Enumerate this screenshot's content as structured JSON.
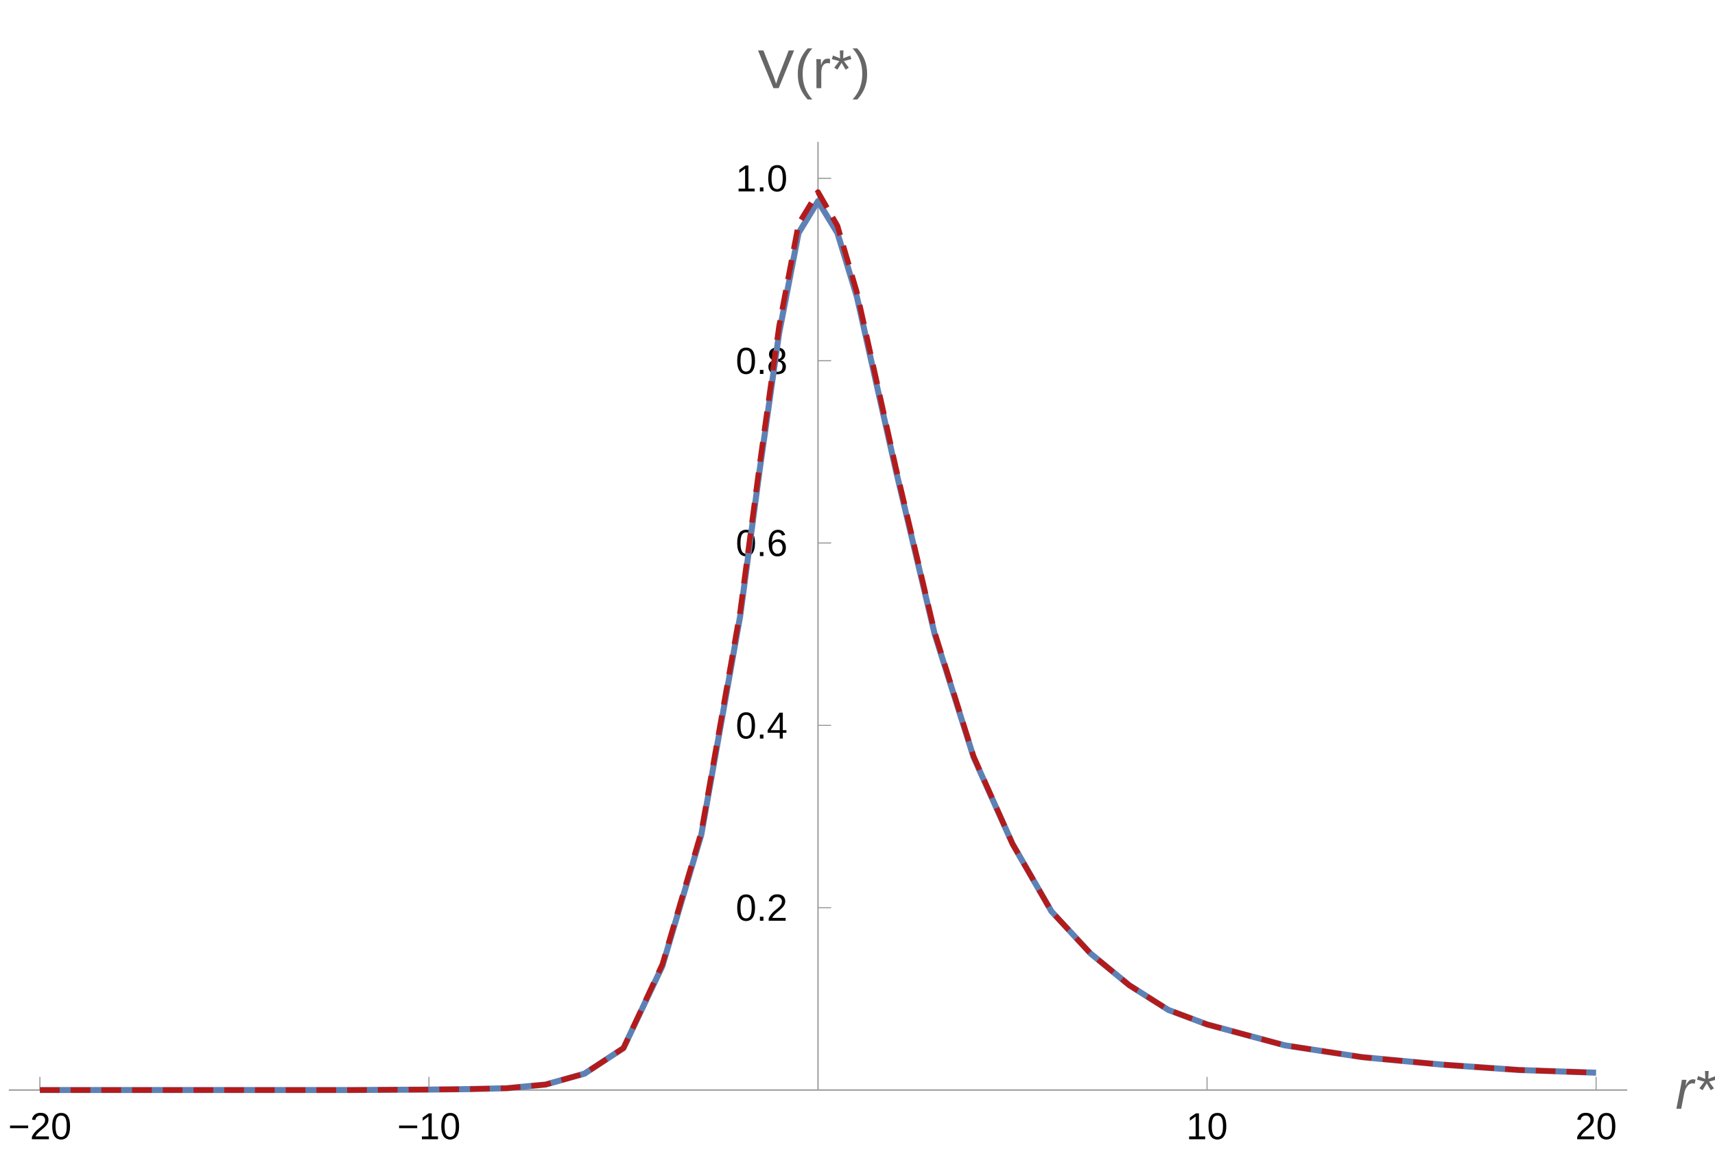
{
  "chart_data": {
    "type": "line",
    "x_label": "r*",
    "y_label": "V(r*)",
    "x": [
      -20,
      -18,
      -16,
      -14,
      -12,
      -10,
      -9,
      -8,
      -7,
      -6,
      -5,
      -4,
      -3,
      -2,
      -1.5,
      -1,
      -0.5,
      0,
      0.5,
      1,
      2,
      3,
      4,
      5,
      6,
      7,
      8,
      9,
      10,
      12,
      14,
      16,
      18,
      20
    ],
    "series": [
      {
        "color": "#5e81b5",
        "dash": false,
        "values": [
          0,
          0,
          0,
          0,
          0,
          0.0005,
          0.001,
          0.002,
          0.006,
          0.018,
          0.046,
          0.136,
          0.28,
          0.52,
          0.68,
          0.83,
          0.94,
          0.975,
          0.94,
          0.87,
          0.68,
          0.5,
          0.365,
          0.27,
          0.196,
          0.15,
          0.115,
          0.088,
          0.072,
          0.049,
          0.036,
          0.028,
          0.022,
          0.019
        ]
      },
      {
        "color": "#b31b1b",
        "dash": true,
        "values": [
          0,
          0,
          0,
          0,
          0,
          0.0005,
          0.001,
          0.002,
          0.006,
          0.018,
          0.046,
          0.138,
          0.283,
          0.525,
          0.686,
          0.838,
          0.95,
          0.985,
          0.948,
          0.875,
          0.683,
          0.502,
          0.366,
          0.27,
          0.196,
          0.15,
          0.115,
          0.088,
          0.072,
          0.049,
          0.036,
          0.028,
          0.022,
          0.019
        ]
      }
    ],
    "xlim": [
      -20.8,
      20.8
    ],
    "ylim": [
      0,
      1.04
    ],
    "xticks": [
      {
        "value": -20,
        "label": "−20"
      },
      {
        "value": -10,
        "label": "−10"
      },
      10,
      20
    ],
    "yticks": [
      0.2,
      0.4,
      0.6,
      0.8,
      {
        "value": 1,
        "label": "1.0"
      }
    ],
    "grid": false
  }
}
